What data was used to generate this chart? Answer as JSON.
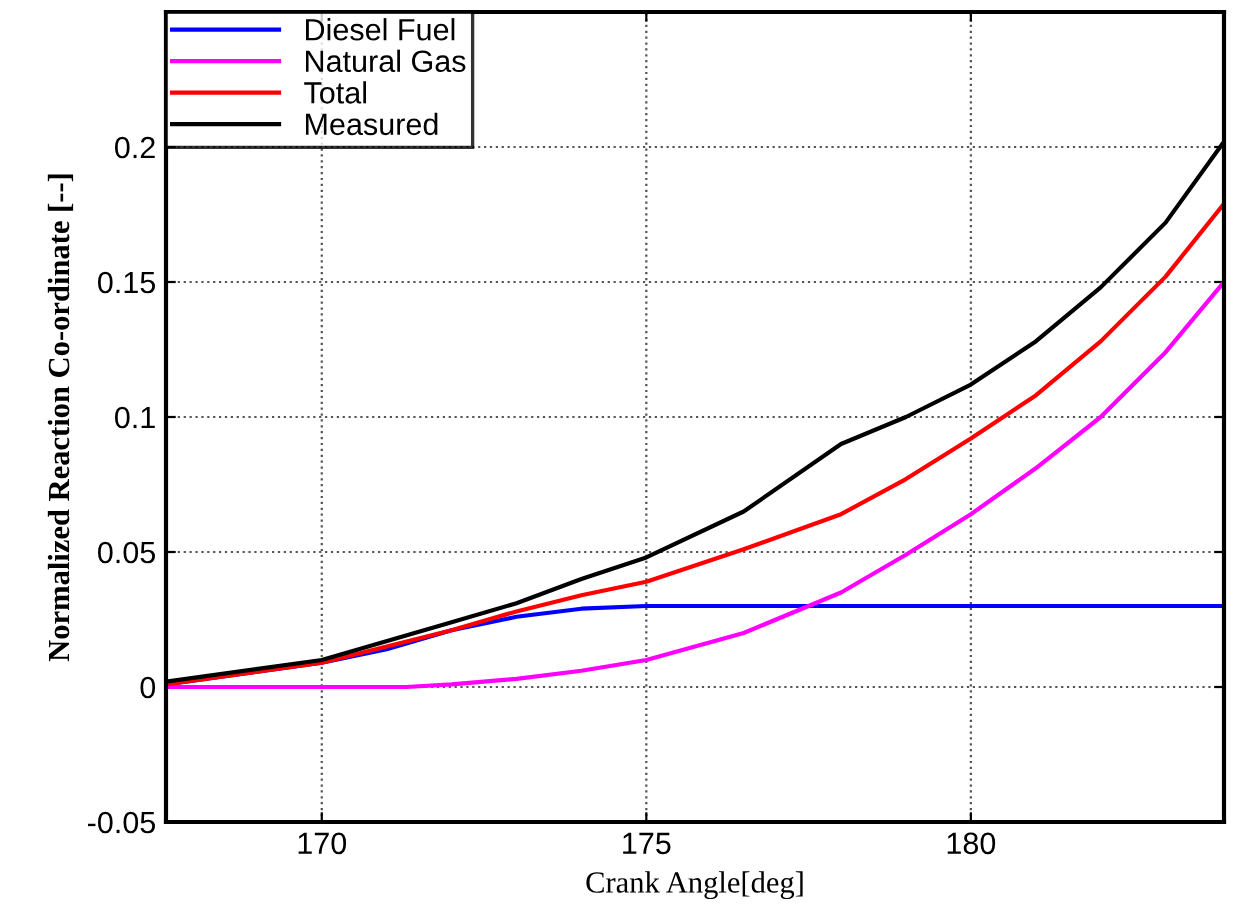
{
  "chart_data": {
    "type": "line",
    "xlabel": "Crank Angle[deg]",
    "ylabel": "Normalized Reaction Co-ordinate [--]",
    "xlim": [
      167.6,
      183.9
    ],
    "xticks": [
      170,
      175,
      180
    ],
    "ylim": [
      -0.05,
      0.25
    ],
    "yticks": [
      -0.05,
      0,
      0.05,
      0.1,
      0.15,
      0.2
    ],
    "grid": true,
    "legend": "top left",
    "marker": "none",
    "line_style": "solid",
    "series": [
      {
        "name": "Diesel Fuel",
        "color": "#0000ff",
        "x": [
          167.6,
          170,
          171,
          172,
          173,
          174,
          175,
          176,
          178,
          180,
          182,
          183.9
        ],
        "values": [
          0.001,
          0.009,
          0.014,
          0.021,
          0.026,
          0.029,
          0.03,
          0.03,
          0.03,
          0.03,
          0.03,
          0.03
        ]
      },
      {
        "name": "Natural Gas",
        "color": "#ff00ff",
        "x": [
          167.6,
          170,
          171.3,
          172,
          173,
          174,
          175,
          176.5,
          178,
          179,
          180,
          181,
          182,
          183,
          183.9
        ],
        "values": [
          0,
          0,
          0,
          0.001,
          0.003,
          0.006,
          0.01,
          0.02,
          0.035,
          0.049,
          0.064,
          0.081,
          0.1,
          0.124,
          0.15
        ]
      },
      {
        "name": "Total",
        "color": "#ff0000",
        "x": [
          167.6,
          170,
          172,
          173,
          174,
          175,
          176.5,
          178,
          179,
          180,
          181,
          182,
          183,
          183.9
        ],
        "values": [
          0.001,
          0.009,
          0.021,
          0.028,
          0.034,
          0.039,
          0.051,
          0.064,
          0.077,
          0.092,
          0.108,
          0.128,
          0.152,
          0.179
        ]
      },
      {
        "name": "Measured",
        "color": "#000000",
        "x": [
          167.6,
          170,
          172,
          173,
          174,
          175,
          176.5,
          178,
          179,
          180,
          181,
          182,
          183,
          183.9
        ],
        "values": [
          0.002,
          0.01,
          0.024,
          0.031,
          0.04,
          0.048,
          0.065,
          0.09,
          0.1,
          0.112,
          0.128,
          0.148,
          0.172,
          0.202
        ]
      }
    ]
  }
}
